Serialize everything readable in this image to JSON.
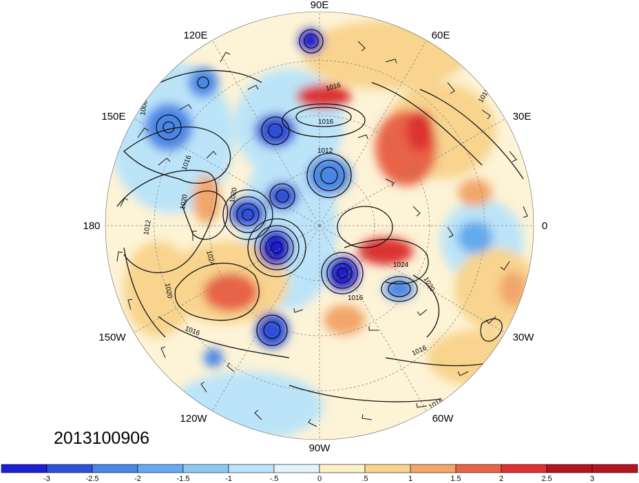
{
  "timestamp": "2013100906",
  "longitude_labels": {
    "deg_90e": "90E",
    "deg_60e": "60E",
    "deg_30e": "30E",
    "deg_0": "0",
    "deg_30w": "30W",
    "deg_60w": "60W",
    "deg_90w": "90W",
    "deg_120w": "120W",
    "deg_150w": "150W",
    "deg_180": "180",
    "deg_150e": "150E",
    "deg_120e": "120E"
  },
  "contour_labels": [
    "1016",
    "1016",
    "1016",
    "1012",
    "1008",
    "1016",
    "1020",
    "1012",
    "1024",
    "1020",
    "1016",
    "1020",
    "1024",
    "1020",
    "1016",
    "1016",
    "1016"
  ],
  "colorbar": {
    "tick_labels": [
      "-3",
      "-2.5",
      "-2",
      "-1.5",
      "-1",
      "-.5",
      "0",
      ".5",
      "1",
      "1.5",
      "2",
      "2.5",
      "3"
    ],
    "colors": [
      "#1e1ed2",
      "#2e50d8",
      "#4a86e6",
      "#64aaee",
      "#8ccaf4",
      "#bce4f8",
      "#e4f4fc",
      "#fcf0c8",
      "#f8d48e",
      "#f2a66a",
      "#e86446",
      "#dc3232",
      "#b41422"
    ]
  },
  "anomaly_centers": [
    {
      "name": "blob-neg-north-pole",
      "value": -3
    },
    {
      "name": "blob-pos-north-europe",
      "value": 2.5
    },
    {
      "name": "blob-pos-barents",
      "value": 2
    },
    {
      "name": "blob-neg-siberia",
      "value": -2
    },
    {
      "name": "blob-neg-arctic-1",
      "value": -2.5
    },
    {
      "name": "blob-neg-arctic-2",
      "value": -3
    },
    {
      "name": "blob-neg-greenland",
      "value": -3
    },
    {
      "name": "blob-pos-greenland-east",
      "value": 2
    },
    {
      "name": "blob-neg-alaska",
      "value": -2.5
    },
    {
      "name": "blob-pos-pacific",
      "value": 1.5
    },
    {
      "name": "blob-neg-atlantic",
      "value": -1.5
    },
    {
      "name": "blob-pos-canada",
      "value": 1.5
    },
    {
      "name": "blob-neg-pacific-east",
      "value": -2
    },
    {
      "name": "blob-neg-north-pacific",
      "value": -2
    },
    {
      "name": "blob-neg-east-asia",
      "value": -2
    },
    {
      "name": "blob-pos-atlantic-east",
      "value": 1.5
    }
  ]
}
